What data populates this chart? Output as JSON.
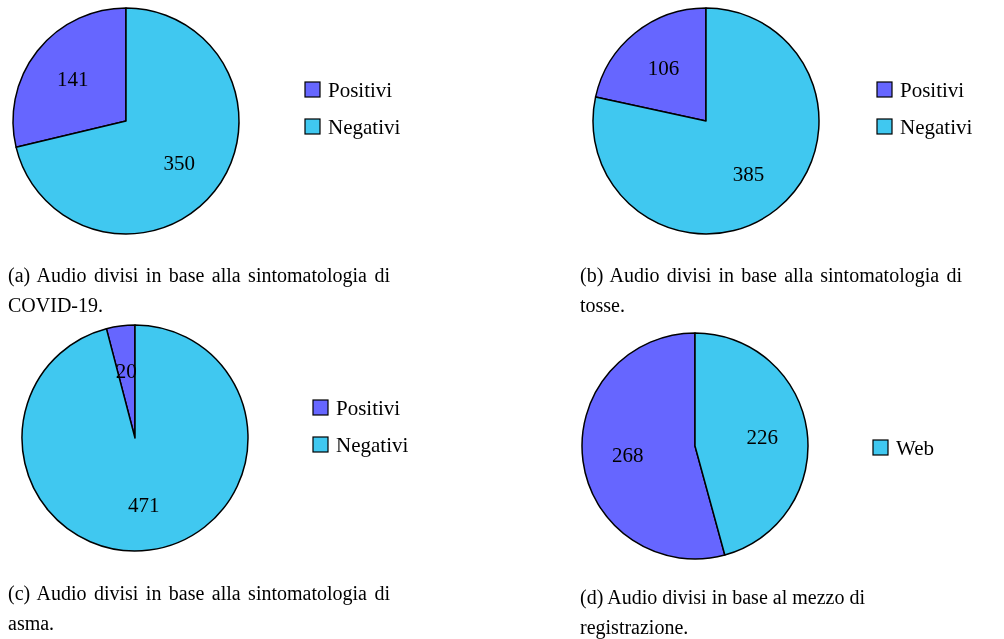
{
  "chart_data": [
    {
      "type": "pie",
      "categories": [
        "Positivi",
        "Negativi"
      ],
      "values": [
        141,
        350
      ],
      "colors": [
        "#6666ff",
        "#40c8f0"
      ],
      "data_labels": true,
      "legend": "right",
      "annotations": [
        "(a) Audio divisi in base alla sintomatologia di COVID-19."
      ]
    },
    {
      "type": "pie",
      "categories": [
        "Positivi",
        "Negativi"
      ],
      "values": [
        106,
        385
      ],
      "colors": [
        "#6666ff",
        "#40c8f0"
      ],
      "data_labels": true,
      "legend": "right",
      "annotations": [
        "(b) Audio divisi in base alla sintomatologia di tosse."
      ]
    },
    {
      "type": "pie",
      "categories": [
        "Positivi",
        "Negativi"
      ],
      "values": [
        20,
        471
      ],
      "colors": [
        "#6666ff",
        "#40c8f0"
      ],
      "data_labels": true,
      "legend": "right",
      "annotations": [
        "(c) Audio divisi in base alla sintomatologia di asma."
      ]
    },
    {
      "type": "pie",
      "categories": [
        null,
        "Web"
      ],
      "values": [
        268,
        226
      ],
      "colors": [
        "#6666ff",
        "#40c8f0"
      ],
      "data_labels": true,
      "legend": "right",
      "annotations": [
        "(d) Audio divisi in base al mezzo di registrazione."
      ]
    }
  ]
}
